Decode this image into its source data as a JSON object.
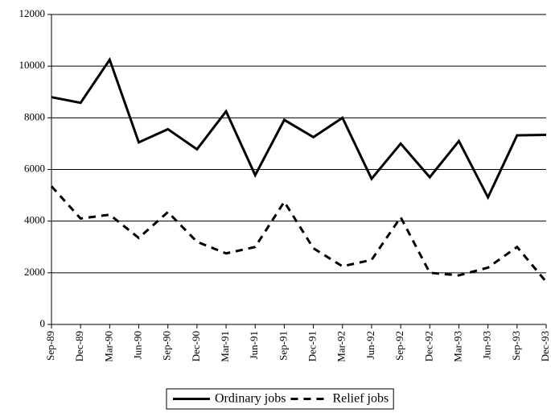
{
  "chart_data": {
    "type": "line",
    "categories": [
      "Sep-89",
      "Dec-89",
      "Mar-90",
      "Jun-90",
      "Sep-90",
      "Dec-90",
      "Mar-91",
      "Jun-91",
      "Sep-91",
      "Dec-91",
      "Mar-92",
      "Jun-92",
      "Sep-92",
      "Dec-92",
      "Mar-93",
      "Jun-93",
      "Sep-93",
      "Dec-93"
    ],
    "series": [
      {
        "name": "Ordinary jobs",
        "color": "#000000",
        "dash": "solid",
        "values": [
          8800,
          8580,
          10250,
          7050,
          7560,
          6780,
          8250,
          5780,
          7920,
          7250,
          8000,
          5640,
          7000,
          5700,
          7100,
          4920,
          7320,
          7340
        ]
      },
      {
        "name": "Relief jobs",
        "color": "#000000",
        "dash": "dashed",
        "values": [
          5350,
          4100,
          4250,
          3350,
          4350,
          3200,
          2750,
          3000,
          4750,
          2950,
          2250,
          2500,
          4150,
          2000,
          1900,
          2200,
          3000,
          1650
        ]
      }
    ],
    "ylim": [
      0,
      12000
    ],
    "yticks": [
      0,
      2000,
      4000,
      6000,
      8000,
      10000,
      12000
    ],
    "grid": true,
    "legend": "bottom"
  }
}
